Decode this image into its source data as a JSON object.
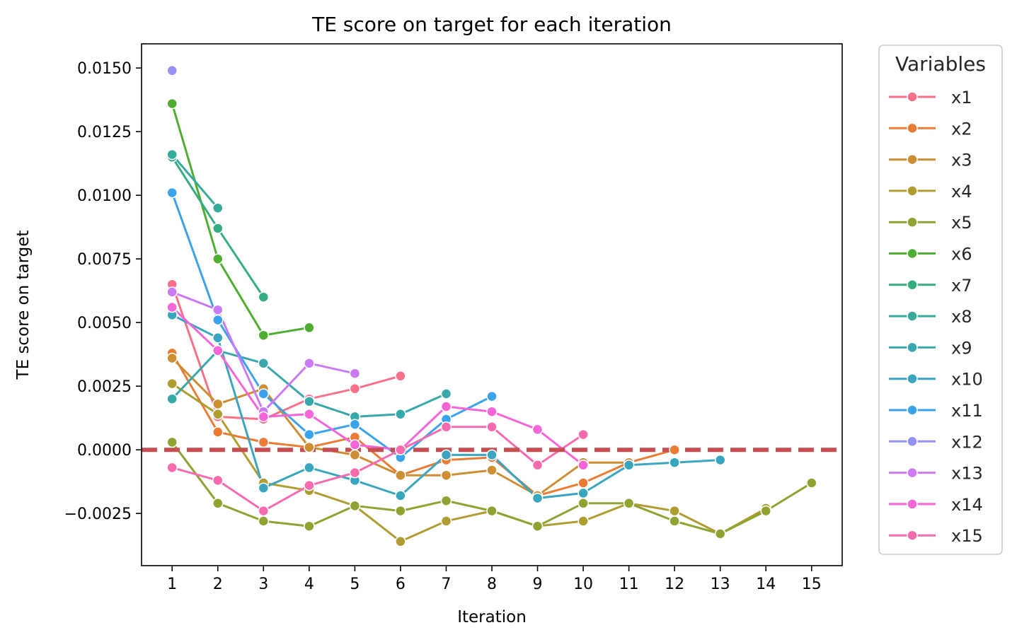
{
  "chart_data": {
    "type": "line",
    "title": "TE score on target for each iteration",
    "xlabel": "Iteration",
    "ylabel": "TE score on target",
    "x_ticks": [
      "1",
      "2",
      "3",
      "4",
      "5",
      "6",
      "7",
      "8",
      "9",
      "10",
      "11",
      "12",
      "13",
      "14",
      "15"
    ],
    "y_ticks": [
      {
        "value": -0.0025,
        "label": "−0.0025"
      },
      {
        "value": 0.0,
        "label": "0.0000"
      },
      {
        "value": 0.0025,
        "label": "0.0025"
      },
      {
        "value": 0.005,
        "label": "0.0050"
      },
      {
        "value": 0.0075,
        "label": "0.0075"
      },
      {
        "value": 0.01,
        "label": "0.0100"
      },
      {
        "value": 0.0125,
        "label": "0.0125"
      },
      {
        "value": 0.015,
        "label": "0.0150"
      }
    ],
    "xlim": [
      0.33,
      15.67
    ],
    "ylim": [
      -0.00455,
      0.01595
    ],
    "reference_line": {
      "y": 0.0,
      "color": "#c44e52",
      "style": "dashed"
    },
    "legend": {
      "title": "Variables",
      "placement": "outside-right"
    },
    "grid": false,
    "series": [
      {
        "name": "x1",
        "color": "#f77189",
        "x": [
          1,
          2,
          3,
          4,
          5,
          6
        ],
        "y": [
          0.0065,
          0.0013,
          0.0012,
          0.002,
          0.0024,
          0.0029
        ]
      },
      {
        "name": "x2",
        "color": "#ea7c36",
        "x": [
          1,
          2,
          3,
          4,
          5,
          6,
          7,
          8,
          9,
          10,
          11,
          12
        ],
        "y": [
          0.0038,
          0.0007,
          0.0003,
          0.0001,
          0.0005,
          -0.001,
          -0.0004,
          -0.0003,
          -0.0018,
          -0.0013,
          -0.0005,
          0.0
        ]
      },
      {
        "name": "x3",
        "color": "#cd8d32",
        "x": [
          1,
          2,
          3,
          4,
          5,
          6,
          7,
          8,
          9,
          10,
          11
        ],
        "y": [
          0.0036,
          0.0018,
          0.0024,
          0.0001,
          -0.0002,
          -0.001,
          -0.001,
          -0.0008,
          -0.0018,
          -0.0005,
          -0.0005
        ]
      },
      {
        "name": "x4",
        "color": "#b09d32",
        "x": [
          1,
          2,
          3,
          4,
          5,
          6,
          7,
          8,
          9,
          10,
          11,
          12,
          13,
          14
        ],
        "y": [
          0.0026,
          0.0014,
          -0.0013,
          -0.0016,
          -0.0022,
          -0.0036,
          -0.0028,
          -0.0024,
          -0.003,
          -0.0028,
          -0.0021,
          -0.0024,
          -0.0033,
          -0.0023
        ]
      },
      {
        "name": "x5",
        "color": "#8ea332",
        "x": [
          1,
          2,
          3,
          4,
          5,
          6,
          7,
          8,
          9,
          10,
          11,
          12,
          13,
          14,
          15
        ],
        "y": [
          0.0003,
          -0.0021,
          -0.0028,
          -0.003,
          -0.0022,
          -0.0024,
          -0.002,
          -0.0024,
          -0.003,
          -0.0021,
          -0.0021,
          -0.0028,
          -0.0033,
          -0.0024,
          -0.0013
        ]
      },
      {
        "name": "x6",
        "color": "#4fae32",
        "x": [
          1,
          2,
          3,
          4
        ],
        "y": [
          0.0136,
          0.0075,
          0.0045,
          0.0048
        ]
      },
      {
        "name": "x7",
        "color": "#34ae80",
        "x": [
          1,
          2,
          3
        ],
        "y": [
          0.0115,
          0.0087,
          0.006
        ]
      },
      {
        "name": "x8",
        "color": "#36ab9b",
        "x": [
          1,
          2
        ],
        "y": [
          0.0116,
          0.0095
        ]
      },
      {
        "name": "x9",
        "color": "#38a8ab",
        "x": [
          1,
          2,
          3,
          4,
          5,
          6,
          7
        ],
        "y": [
          0.002,
          0.0039,
          0.0034,
          0.0019,
          0.0013,
          0.0014,
          0.0022
        ]
      },
      {
        "name": "x10",
        "color": "#3aa5be",
        "x": [
          1,
          2,
          3,
          4,
          5,
          6,
          7,
          8,
          9,
          10,
          11,
          12,
          13
        ],
        "y": [
          0.0053,
          0.0044,
          -0.0015,
          -0.0007,
          -0.0012,
          -0.0018,
          -0.0002,
          -0.0002,
          -0.0019,
          -0.0017,
          -0.0006,
          -0.0005,
          -0.0004
        ]
      },
      {
        "name": "x11",
        "color": "#3ba3ec",
        "x": [
          1,
          2,
          3,
          4,
          5,
          6,
          7,
          8
        ],
        "y": [
          0.0101,
          0.0051,
          0.0022,
          0.0006,
          0.001,
          -0.0003,
          0.0012,
          0.0021
        ]
      },
      {
        "name": "x12",
        "color": "#9591f4",
        "x": [
          1
        ],
        "y": [
          0.0149
        ]
      },
      {
        "name": "x13",
        "color": "#cc79f4",
        "x": [
          1,
          2,
          3,
          4,
          5
        ],
        "y": [
          0.0062,
          0.0055,
          0.0015,
          0.0034,
          0.003
        ]
      },
      {
        "name": "x14",
        "color": "#f565d8",
        "x": [
          1,
          2,
          3,
          4,
          5,
          6,
          7,
          8,
          9,
          10
        ],
        "y": [
          0.0056,
          0.0039,
          0.0013,
          0.0014,
          0.0002,
          0.0,
          0.0017,
          0.0015,
          0.0008,
          -0.0006
        ]
      },
      {
        "name": "x15",
        "color": "#f66bad",
        "x": [
          1,
          2,
          3,
          4,
          5,
          6,
          7,
          8,
          9,
          10
        ],
        "y": [
          -0.0007,
          -0.0012,
          -0.0024,
          -0.0014,
          -0.0009,
          0.0,
          0.0009,
          0.0009,
          -0.0006,
          0.0006
        ]
      }
    ]
  }
}
